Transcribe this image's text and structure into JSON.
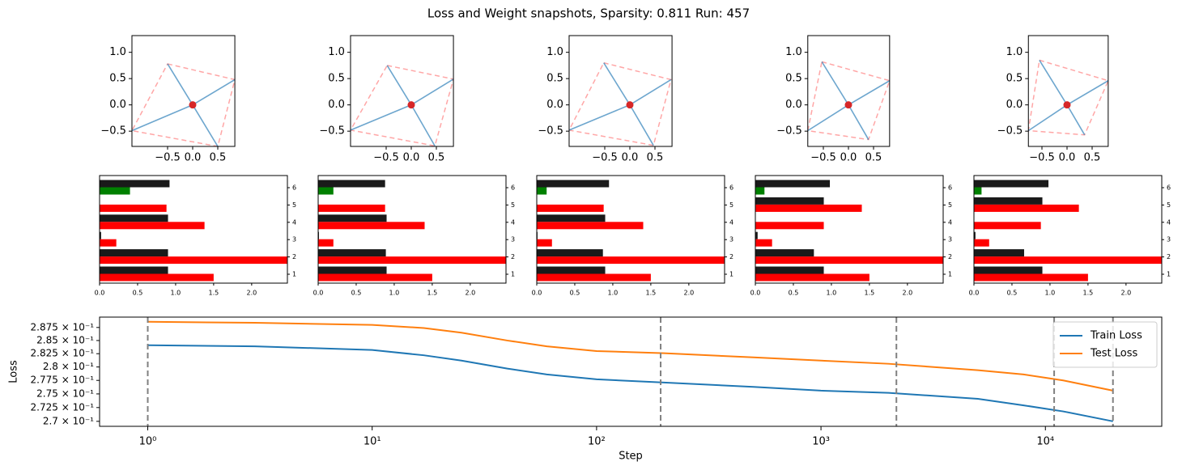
{
  "title": "Loss and Weight snapshots, Sparsity: 0.811  Run: 457",
  "chart_data": [
    {
      "type": "vectors",
      "xlim": [
        -1.21,
        0.84
      ],
      "ylim": [
        -0.79,
        1.32
      ],
      "xticks": [
        {
          "value": -0.5,
          "label": "−0.5"
        },
        {
          "value": 0,
          "label": "0.0"
        },
        {
          "value": 0.5,
          "label": "0.5"
        }
      ],
      "yticks": [
        {
          "value": -0.5,
          "label": "−0.5"
        },
        {
          "value": 0,
          "label": "0.0"
        },
        {
          "value": 0.5,
          "label": "0.5"
        },
        {
          "value": 1,
          "label": "1.0"
        }
      ],
      "color": "#1f77b4",
      "hull_color": "#ff0000",
      "x": [
        -0.5,
        0.84,
        0.5,
        -1.21
      ],
      "y": [
        0.78,
        0.48,
        -0.79,
        -0.49
      ]
    },
    {
      "type": "vectors",
      "xlim": [
        -1.21,
        0.84
      ],
      "ylim": [
        -0.79,
        1.32
      ],
      "xticks": [
        {
          "value": -0.5,
          "label": "−0.5"
        },
        {
          "value": 0,
          "label": "0.0"
        },
        {
          "value": 0.5,
          "label": "0.5"
        }
      ],
      "yticks": [
        {
          "value": -0.5,
          "label": "−0.5"
        },
        {
          "value": 0,
          "label": "0.0"
        },
        {
          "value": 0.5,
          "label": "0.5"
        },
        {
          "value": 1,
          "label": "1.0"
        }
      ],
      "color": "#1f77b4",
      "hull_color": "#ff0000",
      "x": [
        -0.48,
        0.84,
        0.47,
        -1.21
      ],
      "y": [
        0.75,
        0.49,
        -0.78,
        -0.48
      ]
    },
    {
      "type": "vectors",
      "xlim": [
        -1.21,
        0.84
      ],
      "ylim": [
        -0.79,
        1.32
      ],
      "xticks": [
        {
          "value": -0.5,
          "label": "−0.5"
        },
        {
          "value": 0,
          "label": "0.0"
        },
        {
          "value": 0.5,
          "label": "0.5"
        }
      ],
      "yticks": [
        {
          "value": -0.5,
          "label": "−0.5"
        },
        {
          "value": 0,
          "label": "0.0"
        },
        {
          "value": 0.5,
          "label": "0.5"
        },
        {
          "value": 1,
          "label": "1.0"
        }
      ],
      "color": "#1f77b4",
      "hull_color": "#ff0000",
      "x": [
        -0.52,
        0.82,
        0.47,
        -1.21
      ],
      "y": [
        0.8,
        0.48,
        -0.77,
        -0.48
      ]
    },
    {
      "type": "vectors",
      "xlim": [
        -0.81,
        0.82
      ],
      "ylim": [
        -0.79,
        1.32
      ],
      "xticks": [
        {
          "value": -0.5,
          "label": "−0.5"
        },
        {
          "value": 0,
          "label": "0.0"
        },
        {
          "value": 0.5,
          "label": "0.5"
        }
      ],
      "yticks": [
        {
          "value": -0.5,
          "label": "−0.5"
        },
        {
          "value": 0,
          "label": "0.0"
        },
        {
          "value": 0.5,
          "label": "0.5"
        },
        {
          "value": 1,
          "label": "1.0"
        }
      ],
      "color": "#1f77b4",
      "hull_color": "#ff0000",
      "x": [
        -0.53,
        0.82,
        0.4,
        -0.81
      ],
      "y": [
        0.82,
        0.46,
        -0.66,
        -0.49
      ]
    },
    {
      "type": "vectors",
      "xlim": [
        -0.77,
        0.82
      ],
      "ylim": [
        -0.79,
        1.32
      ],
      "xticks": [
        {
          "value": -0.5,
          "label": "−0.5"
        },
        {
          "value": 0,
          "label": "0.0"
        },
        {
          "value": 0.5,
          "label": "0.5"
        }
      ],
      "yticks": [
        {
          "value": -0.5,
          "label": "−0.5"
        },
        {
          "value": 0,
          "label": "0.0"
        },
        {
          "value": 0.5,
          "label": "0.5"
        },
        {
          "value": 1,
          "label": "1.0"
        }
      ],
      "color": "#1f77b4",
      "hull_color": "#ff0000",
      "x": [
        -0.55,
        0.82,
        0.35,
        -0.77
      ],
      "y": [
        0.85,
        0.46,
        -0.57,
        -0.49
      ]
    },
    {
      "type": "bar",
      "categories": [
        "1",
        "2",
        "3",
        "4",
        "5",
        "6"
      ],
      "xlim": [
        0,
        2.47
      ],
      "xticks": [
        {
          "value": 0,
          "label": "0.0"
        },
        {
          "value": 0.5,
          "label": "0.5"
        },
        {
          "value": 1,
          "label": "1.0"
        },
        {
          "value": 1.5,
          "label": "1.5"
        },
        {
          "value": 2,
          "label": "2.0"
        }
      ],
      "series": [
        {
          "color": "#1a1a1a",
          "values": [
            0.9,
            0.9,
            0.02,
            0.9,
            0,
            0.92
          ]
        },
        {
          "color": "#ff0000",
          "colors": [
            "#ff0000",
            "#ff0000",
            "#ff0000",
            "#ff0000",
            "#ff0000",
            "#008000"
          ],
          "values": [
            1.5,
            2.5,
            0.22,
            1.38,
            0.88,
            0.4
          ]
        }
      ]
    },
    {
      "type": "bar",
      "categories": [
        "1",
        "2",
        "3",
        "4",
        "5",
        "6"
      ],
      "xlim": [
        0,
        2.47
      ],
      "xticks": [
        {
          "value": 0,
          "label": "0.0"
        },
        {
          "value": 0.5,
          "label": "0.5"
        },
        {
          "value": 1,
          "label": "1.0"
        },
        {
          "value": 1.5,
          "label": "1.5"
        },
        {
          "value": 2,
          "label": "2.0"
        }
      ],
      "series": [
        {
          "color": "#1a1a1a",
          "values": [
            0.9,
            0.89,
            0.01,
            0.9,
            0,
            0.88
          ]
        },
        {
          "color": "#ff0000",
          "colors": [
            "#ff0000",
            "#ff0000",
            "#ff0000",
            "#ff0000",
            "#ff0000",
            "#008000"
          ],
          "values": [
            1.5,
            2.5,
            0.2,
            1.4,
            0.88,
            0.2
          ]
        }
      ]
    },
    {
      "type": "bar",
      "categories": [
        "1",
        "2",
        "3",
        "4",
        "5",
        "6"
      ],
      "xlim": [
        0,
        2.47
      ],
      "xticks": [
        {
          "value": 0,
          "label": "0.0"
        },
        {
          "value": 0.5,
          "label": "0.5"
        },
        {
          "value": 1,
          "label": "1.0"
        },
        {
          "value": 1.5,
          "label": "1.5"
        },
        {
          "value": 2,
          "label": "2.0"
        }
      ],
      "series": [
        {
          "color": "#1a1a1a",
          "values": [
            0.9,
            0.87,
            0.01,
            0.9,
            0,
            0.95
          ]
        },
        {
          "color": "#ff0000",
          "colors": [
            "#ff0000",
            "#ff0000",
            "#ff0000",
            "#ff0000",
            "#ff0000",
            "#008000"
          ],
          "values": [
            1.5,
            2.5,
            0.2,
            1.4,
            0.88,
            0.13
          ]
        }
      ]
    },
    {
      "type": "bar",
      "categories": [
        "1",
        "2",
        "3",
        "4",
        "5",
        "6"
      ],
      "xlim": [
        0,
        2.47
      ],
      "xticks": [
        {
          "value": 0,
          "label": "0.0"
        },
        {
          "value": 0.5,
          "label": "0.5"
        },
        {
          "value": 1,
          "label": "1.0"
        },
        {
          "value": 1.5,
          "label": "1.5"
        },
        {
          "value": 2,
          "label": "2.0"
        }
      ],
      "series": [
        {
          "color": "#1a1a1a",
          "values": [
            0.9,
            0.77,
            0.03,
            0,
            0.9,
            0.98
          ]
        },
        {
          "color": "#ff0000",
          "colors": [
            "#ff0000",
            "#ff0000",
            "#ff0000",
            "#ff0000",
            "#ff0000",
            "#008000"
          ],
          "values": [
            1.5,
            2.5,
            0.22,
            0.9,
            1.4,
            0.12
          ]
        }
      ]
    },
    {
      "type": "bar",
      "categories": [
        "1",
        "2",
        "3",
        "4",
        "5",
        "6"
      ],
      "xlim": [
        0,
        2.47
      ],
      "xticks": [
        {
          "value": 0,
          "label": "0.0"
        },
        {
          "value": 0.5,
          "label": "0.5"
        },
        {
          "value": 1,
          "label": "1.0"
        },
        {
          "value": 1.5,
          "label": "1.5"
        },
        {
          "value": 2,
          "label": "2.0"
        }
      ],
      "series": [
        {
          "color": "#1a1a1a",
          "values": [
            0.9,
            0.66,
            0.02,
            0,
            0.9,
            0.98
          ]
        },
        {
          "color": "#ff0000",
          "colors": [
            "#ff0000",
            "#ff0000",
            "#ff0000",
            "#ff0000",
            "#ff0000",
            "#008000"
          ],
          "values": [
            1.5,
            2.5,
            0.2,
            0.88,
            1.38,
            0.1
          ]
        }
      ]
    },
    {
      "type": "line",
      "xlabel": "Step",
      "ylabel": "Loss",
      "xlog": true,
      "ylog": true,
      "xlim": [
        0.61,
        33000
      ],
      "ylim": [
        0.2691,
        0.2895
      ],
      "xticks": [
        {
          "value": 1,
          "label": "10⁰"
        },
        {
          "value": 10,
          "label": "10¹"
        },
        {
          "value": 100,
          "label": "10²"
        },
        {
          "value": 1000,
          "label": "10³"
        },
        {
          "value": 10000,
          "label": "10⁴"
        }
      ],
      "yticks": [
        {
          "value": 0.27,
          "label": "2.7 × 10⁻¹"
        },
        {
          "value": 0.2725,
          "label": "2.725 × 10⁻¹"
        },
        {
          "value": 0.275,
          "label": "2.75 × 10⁻¹"
        },
        {
          "value": 0.2775,
          "label": "2.775 × 10⁻¹"
        },
        {
          "value": 0.28,
          "label": "2.8 × 10⁻¹"
        },
        {
          "value": 0.2825,
          "label": "2.825 × 10⁻¹"
        },
        {
          "value": 0.285,
          "label": "2.85 × 10⁻¹"
        },
        {
          "value": 0.2875,
          "label": "2.875 × 10⁻¹"
        }
      ],
      "legend": "upper right",
      "vlines": [
        1,
        193,
        2168,
        10940,
        20000
      ],
      "vline_color": "#808080",
      "x": [
        1,
        3,
        10,
        17,
        25,
        40,
        60,
        100,
        200,
        500,
        1000,
        2000,
        5000,
        8000,
        12000,
        20000
      ],
      "series": [
        {
          "name": "Train Loss",
          "color": "#1f77b4",
          "values": [
            0.2841,
            0.2839,
            0.2832,
            0.2822,
            0.2812,
            0.2797,
            0.2786,
            0.2777,
            0.2771,
            0.2763,
            0.2756,
            0.2752,
            0.2741,
            0.2729,
            0.2718,
            0.27
          ]
        },
        {
          "name": "Test Loss",
          "color": "#ff7f0e",
          "values": [
            0.2886,
            0.2884,
            0.288,
            0.2874,
            0.2865,
            0.285,
            0.2839,
            0.283,
            0.2826,
            0.2818,
            0.2812,
            0.2806,
            0.2794,
            0.2786,
            0.2775,
            0.2756
          ]
        }
      ]
    }
  ]
}
